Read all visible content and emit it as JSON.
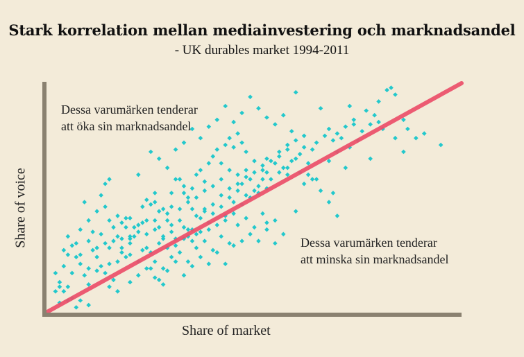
{
  "chart_data": {
    "type": "scatter",
    "title": "Stark korrelation mellan mediainvestering och marknadsandel",
    "subtitle": "- UK durables market 1994-2011",
    "xlabel": "Share of market",
    "ylabel": "Share of voice",
    "xlim": [
      0,
      100
    ],
    "ylim": [
      0,
      100
    ],
    "annotations": {
      "above": [
        "Dessa varumärken tenderar",
        "att öka sin marknadsandel"
      ],
      "below": [
        "Dessa varumärken tenderar",
        "att minska sin marknadsandel"
      ]
    },
    "trend_line": {
      "x": [
        0,
        100
      ],
      "y": [
        0,
        100
      ]
    },
    "colors": {
      "points": "#22c8cc",
      "trend": "#ec4f6a",
      "axes": "#8a8170"
    },
    "points": [
      [
        2,
        9
      ],
      [
        3,
        13
      ],
      [
        4,
        9
      ],
      [
        5,
        11
      ],
      [
        4,
        20
      ],
      [
        6,
        17
      ],
      [
        7,
        24
      ],
      [
        8,
        25
      ],
      [
        5,
        25
      ],
      [
        4,
        27
      ],
      [
        6,
        29
      ],
      [
        8,
        21
      ],
      [
        9,
        16
      ],
      [
        10,
        19
      ],
      [
        10,
        12
      ],
      [
        12,
        18
      ],
      [
        13,
        20
      ],
      [
        11,
        27
      ],
      [
        12,
        24
      ],
      [
        15,
        21
      ],
      [
        14,
        17
      ],
      [
        16,
        14
      ],
      [
        17,
        22
      ],
      [
        18,
        26
      ],
      [
        19,
        24
      ],
      [
        20,
        32
      ],
      [
        21,
        37
      ],
      [
        19,
        37
      ],
      [
        20,
        33
      ],
      [
        22,
        35
      ],
      [
        23,
        39
      ],
      [
        24,
        34
      ],
      [
        26,
        40
      ],
      [
        27,
        37
      ],
      [
        28,
        33
      ],
      [
        29,
        40
      ],
      [
        30,
        35
      ],
      [
        31,
        32
      ],
      [
        33,
        37
      ],
      [
        34,
        33
      ],
      [
        35,
        36
      ],
      [
        36,
        34
      ],
      [
        37,
        41
      ],
      [
        38,
        44
      ],
      [
        39,
        39
      ],
      [
        40,
        43
      ],
      [
        42,
        46
      ],
      [
        43,
        42
      ],
      [
        44,
        50
      ],
      [
        45,
        48
      ],
      [
        46,
        53
      ],
      [
        47,
        56
      ],
      [
        48,
        51
      ],
      [
        50,
        53
      ],
      [
        51,
        55
      ],
      [
        52,
        58
      ],
      [
        53,
        61
      ],
      [
        55,
        65
      ],
      [
        57,
        63
      ],
      [
        58,
        60
      ],
      [
        60,
        67
      ],
      [
        61,
        61
      ],
      [
        63,
        65
      ],
      [
        65,
        58
      ],
      [
        68,
        66
      ],
      [
        70,
        70
      ],
      [
        72,
        63
      ],
      [
        73,
        72
      ],
      [
        75,
        75
      ],
      [
        78,
        67
      ],
      [
        79,
        86
      ],
      [
        80,
        83
      ],
      [
        81,
        80
      ],
      [
        84,
        76
      ],
      [
        86,
        70
      ],
      [
        87,
        80
      ],
      [
        89,
        76
      ],
      [
        91,
        78
      ],
      [
        95,
        73
      ],
      [
        60,
        96
      ],
      [
        66,
        89
      ],
      [
        73,
        90
      ],
      [
        77,
        88
      ],
      [
        74,
        82
      ],
      [
        71,
        76
      ],
      [
        86,
        84
      ],
      [
        80,
        92
      ],
      [
        82,
        97
      ],
      [
        83,
        98
      ],
      [
        84,
        95
      ],
      [
        57,
        86
      ],
      [
        59,
        79
      ],
      [
        58,
        73
      ],
      [
        56,
        70
      ],
      [
        55,
        65
      ],
      [
        9,
        48
      ],
      [
        12,
        44
      ],
      [
        14,
        46
      ],
      [
        15,
        40
      ],
      [
        17,
        42
      ],
      [
        19,
        41
      ],
      [
        22,
        38
      ],
      [
        24,
        49
      ],
      [
        26,
        48
      ],
      [
        28,
        45
      ],
      [
        30,
        52
      ],
      [
        31,
        58
      ],
      [
        33,
        55
      ],
      [
        35,
        54
      ],
      [
        36,
        60
      ],
      [
        37,
        62
      ],
      [
        38,
        57
      ],
      [
        39,
        65
      ],
      [
        40,
        68
      ],
      [
        41,
        71
      ],
      [
        42,
        65
      ],
      [
        43,
        73
      ],
      [
        44,
        76
      ],
      [
        45,
        72
      ],
      [
        46,
        78
      ],
      [
        47,
        74
      ],
      [
        48,
        70
      ],
      [
        50,
        66
      ],
      [
        52,
        62
      ],
      [
        53,
        67
      ],
      [
        32,
        58
      ],
      [
        33,
        52
      ],
      [
        34,
        50
      ],
      [
        35,
        45
      ],
      [
        30,
        46
      ],
      [
        29,
        43
      ],
      [
        27,
        44
      ],
      [
        25,
        47
      ],
      [
        26,
        52
      ],
      [
        23,
        46
      ],
      [
        20,
        41
      ],
      [
        18,
        39
      ],
      [
        16,
        37
      ],
      [
        21,
        33
      ],
      [
        24,
        28
      ],
      [
        26,
        22
      ],
      [
        28,
        19
      ],
      [
        30,
        24
      ],
      [
        32,
        26
      ],
      [
        34,
        22
      ],
      [
        36,
        28
      ],
      [
        38,
        31
      ],
      [
        40,
        27
      ],
      [
        42,
        33
      ],
      [
        44,
        30
      ],
      [
        46,
        38
      ],
      [
        48,
        41
      ],
      [
        50,
        37
      ],
      [
        52,
        43
      ],
      [
        53,
        36
      ],
      [
        55,
        30
      ],
      [
        57,
        34
      ],
      [
        60,
        44
      ],
      [
        62,
        56
      ],
      [
        64,
        58
      ],
      [
        66,
        53
      ],
      [
        68,
        48
      ],
      [
        69,
        52
      ],
      [
        70,
        42
      ],
      [
        63,
        60
      ],
      [
        5,
        33
      ],
      [
        7,
        30
      ],
      [
        10,
        31
      ],
      [
        12,
        28
      ],
      [
        14,
        30
      ],
      [
        16,
        31
      ],
      [
        18,
        32
      ],
      [
        20,
        30
      ],
      [
        23,
        27
      ],
      [
        25,
        26
      ],
      [
        27,
        30
      ],
      [
        29,
        28
      ],
      [
        31,
        29
      ],
      [
        33,
        32
      ],
      [
        35,
        31
      ],
      [
        37,
        35
      ],
      [
        39,
        36
      ],
      [
        41,
        38
      ],
      [
        43,
        40
      ],
      [
        45,
        43
      ],
      [
        47,
        47
      ],
      [
        49,
        50
      ],
      [
        51,
        52
      ],
      [
        53,
        54
      ],
      [
        54,
        58
      ],
      [
        56,
        61
      ],
      [
        58,
        63
      ],
      [
        59,
        66
      ],
      [
        61,
        69
      ],
      [
        62,
        72
      ],
      [
        64,
        71
      ],
      [
        65,
        74
      ],
      [
        67,
        77
      ],
      [
        68,
        80
      ],
      [
        69,
        75
      ],
      [
        70,
        78
      ],
      [
        72,
        81
      ],
      [
        74,
        84
      ],
      [
        76,
        79
      ],
      [
        78,
        82
      ],
      [
        8,
        36
      ],
      [
        10,
        40
      ],
      [
        11,
        35
      ],
      [
        13,
        34
      ],
      [
        15,
        28
      ],
      [
        17,
        33
      ],
      [
        18,
        28
      ],
      [
        20,
        25
      ],
      [
        22,
        22
      ],
      [
        24,
        19
      ],
      [
        26,
        15
      ],
      [
        28,
        12
      ],
      [
        6,
        6
      ],
      [
        8,
        5
      ],
      [
        10,
        3
      ],
      [
        3,
        4
      ],
      [
        5,
        5
      ],
      [
        7,
        2
      ],
      [
        3,
        11
      ],
      [
        2,
        17
      ],
      [
        15,
        11
      ],
      [
        17,
        9
      ],
      [
        20,
        13
      ],
      [
        22,
        16
      ],
      [
        25,
        19
      ],
      [
        27,
        14
      ],
      [
        29,
        18
      ],
      [
        31,
        22
      ],
      [
        33,
        16
      ],
      [
        35,
        20
      ],
      [
        37,
        24
      ],
      [
        39,
        21
      ],
      [
        41,
        26
      ],
      [
        43,
        21
      ],
      [
        45,
        29
      ],
      [
        47,
        31
      ],
      [
        49,
        34
      ],
      [
        51,
        31
      ],
      [
        53,
        39
      ],
      [
        55,
        40
      ],
      [
        49,
        58
      ],
      [
        48,
        62
      ],
      [
        46,
        60
      ],
      [
        44,
        62
      ],
      [
        42,
        58
      ],
      [
        40,
        55
      ],
      [
        38,
        53
      ],
      [
        36,
        50
      ],
      [
        34,
        48
      ],
      [
        32,
        45
      ],
      [
        24,
        40
      ],
      [
        26,
        36
      ],
      [
        28,
        32
      ],
      [
        30,
        38
      ],
      [
        32,
        40
      ],
      [
        34,
        36
      ],
      [
        36,
        42
      ],
      [
        38,
        45
      ],
      [
        40,
        47
      ],
      [
        42,
        51
      ],
      [
        44,
        54
      ],
      [
        46,
        56
      ],
      [
        48,
        59
      ],
      [
        50,
        61
      ],
      [
        52,
        64
      ],
      [
        54,
        66
      ],
      [
        56,
        68
      ],
      [
        58,
        71
      ],
      [
        60,
        75
      ],
      [
        62,
        77
      ],
      [
        13,
        51
      ],
      [
        14,
        56
      ],
      [
        15,
        58
      ],
      [
        22,
        60
      ],
      [
        25,
        70
      ],
      [
        27,
        67
      ],
      [
        29,
        63
      ],
      [
        31,
        71
      ],
      [
        33,
        74
      ],
      [
        35,
        80
      ],
      [
        37,
        76
      ],
      [
        39,
        81
      ],
      [
        41,
        84
      ],
      [
        43,
        90
      ],
      [
        45,
        83
      ],
      [
        47,
        87
      ],
      [
        49,
        94
      ],
      [
        51,
        89
      ],
      [
        53,
        85
      ],
      [
        55,
        82
      ]
    ]
  }
}
